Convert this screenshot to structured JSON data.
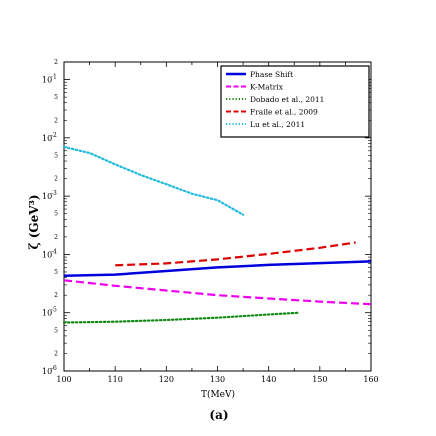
{
  "chart_data": {
    "type": "line",
    "xlabel": "T(MeV)",
    "ylabel": "ζ (GeV³)",
    "panel_label": "(a)",
    "xlim": [
      100,
      160
    ],
    "ylim": [
      1e-06,
      0.2
    ],
    "yscale": "log",
    "xticks": [
      "100",
      "110",
      "120",
      "130",
      "140",
      "150",
      "160"
    ],
    "yticks": [
      "10",
      "10",
      "10",
      "10",
      "10",
      "10"
    ],
    "ytick_exponents": [
      "-6",
      "-5",
      "-4",
      "-3",
      "-2",
      "-1"
    ],
    "ytick_minor_labels": [
      "2",
      "5",
      "2",
      "5",
      "2",
      "5",
      "2",
      "5",
      "2",
      "5",
      "2"
    ],
    "legend_position": "top-right",
    "grid": false,
    "series": [
      {
        "name": "Phase Shift",
        "color": "#0000dd",
        "style": "solid",
        "x": [
          100,
          110,
          120,
          130,
          140,
          150,
          160
        ],
        "y": [
          4.3e-05,
          4.5e-05,
          5.2e-05,
          6e-05,
          6.6e-05,
          7.1e-05,
          7.6e-05
        ]
      },
      {
        "name": "K-Matrix",
        "color": "#ee00ee",
        "style": "dashed",
        "x": [
          100,
          110,
          120,
          130,
          140,
          150,
          160
        ],
        "y": [
          3.6e-05,
          2.9e-05,
          2.4e-05,
          2e-05,
          1.75e-05,
          1.55e-05,
          1.4e-05
        ]
      },
      {
        "name": "Dobado et al., 2011",
        "color": "#118811",
        "style": "dotted",
        "x": [
          100,
          110,
          120,
          130,
          140,
          146
        ],
        "y": [
          6.8e-06,
          7e-06,
          7.5e-06,
          8.2e-06,
          9.3e-06,
          1e-05
        ]
      },
      {
        "name": "Fraile et al., 2009",
        "color": "#dd0000",
        "style": "dashed",
        "x": [
          110,
          120,
          130,
          140,
          150,
          157
        ],
        "y": [
          6.5e-05,
          7e-05,
          8.2e-05,
          0.000102,
          0.00013,
          0.00016
        ]
      },
      {
        "name": "Lu et al., 2011",
        "color": "#22bbdd",
        "style": "dotted",
        "x": [
          100,
          105,
          110,
          115,
          120,
          125,
          130,
          135
        ],
        "y": [
          0.007,
          0.0055,
          0.0035,
          0.0023,
          0.0016,
          0.0011,
          0.00085,
          0.00048
        ]
      }
    ]
  }
}
